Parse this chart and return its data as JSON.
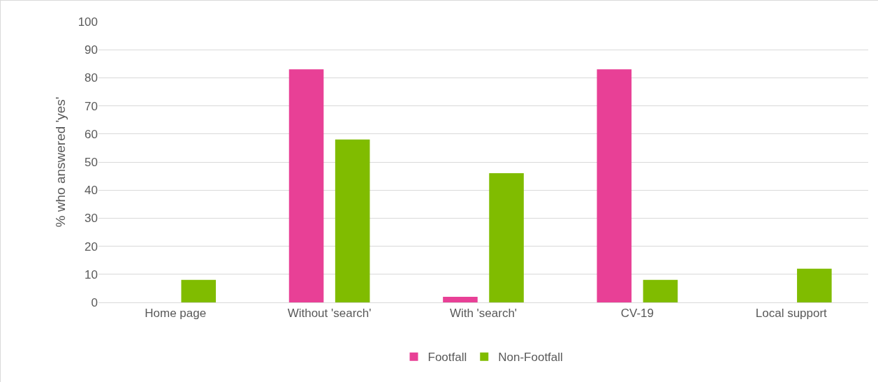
{
  "chart_data": {
    "type": "bar",
    "ylabel": "% who answered 'yes'",
    "categories": [
      "Home page",
      "Without 'search'",
      "With 'search'",
      "CV-19",
      "Local support"
    ],
    "series": [
      {
        "name": "Footfall",
        "color": "#e84096",
        "values": [
          0,
          83,
          2,
          83,
          0
        ]
      },
      {
        "name": "Non-Footfall",
        "color": "#80bc00",
        "values": [
          8,
          58,
          46,
          8,
          12
        ]
      }
    ],
    "ylim": [
      0,
      100
    ],
    "yticks": [
      0,
      10,
      20,
      30,
      40,
      50,
      60,
      70,
      80,
      90,
      100
    ],
    "grid": "y",
    "legend": "bottom"
  }
}
